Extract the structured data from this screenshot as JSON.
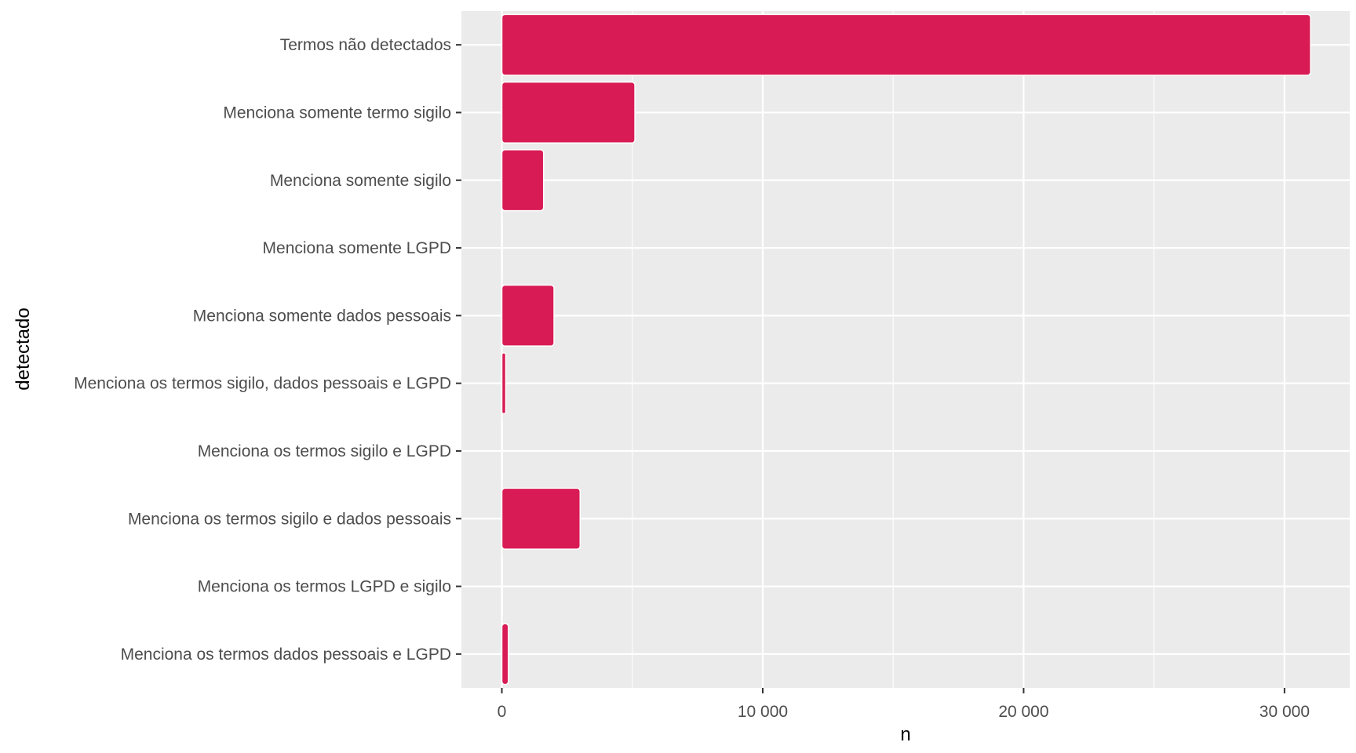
{
  "chart_data": {
    "type": "bar",
    "orientation": "horizontal",
    "title": "",
    "xlabel": "n",
    "ylabel": "detectado",
    "xlim": [
      -1550,
      32500
    ],
    "xticks": [
      0,
      10000,
      20000,
      30000
    ],
    "xtick_labels": [
      "0",
      "10 000",
      "20 000",
      "30 000"
    ],
    "categories": [
      "Termos não detectados",
      "Menciona somente termo sigilo",
      "Menciona somente sigilo",
      "Menciona somente LGPD",
      "Menciona somente dados pessoais",
      "Menciona os termos sigilo, dados pessoais e LGPD",
      "Menciona os termos sigilo e LGPD",
      "Menciona os termos sigilo e dados pessoais",
      "Menciona os termos LGPD e sigilo",
      "Menciona os termos dados pessoais e LGPD"
    ],
    "values": [
      31000,
      5100,
      1600,
      5,
      2000,
      150,
      20,
      3000,
      5,
      250
    ],
    "grid": true,
    "legend": "none",
    "colors": {
      "bar": "#d81b55",
      "panel": "#ebebeb",
      "grid": "#ffffff"
    }
  }
}
